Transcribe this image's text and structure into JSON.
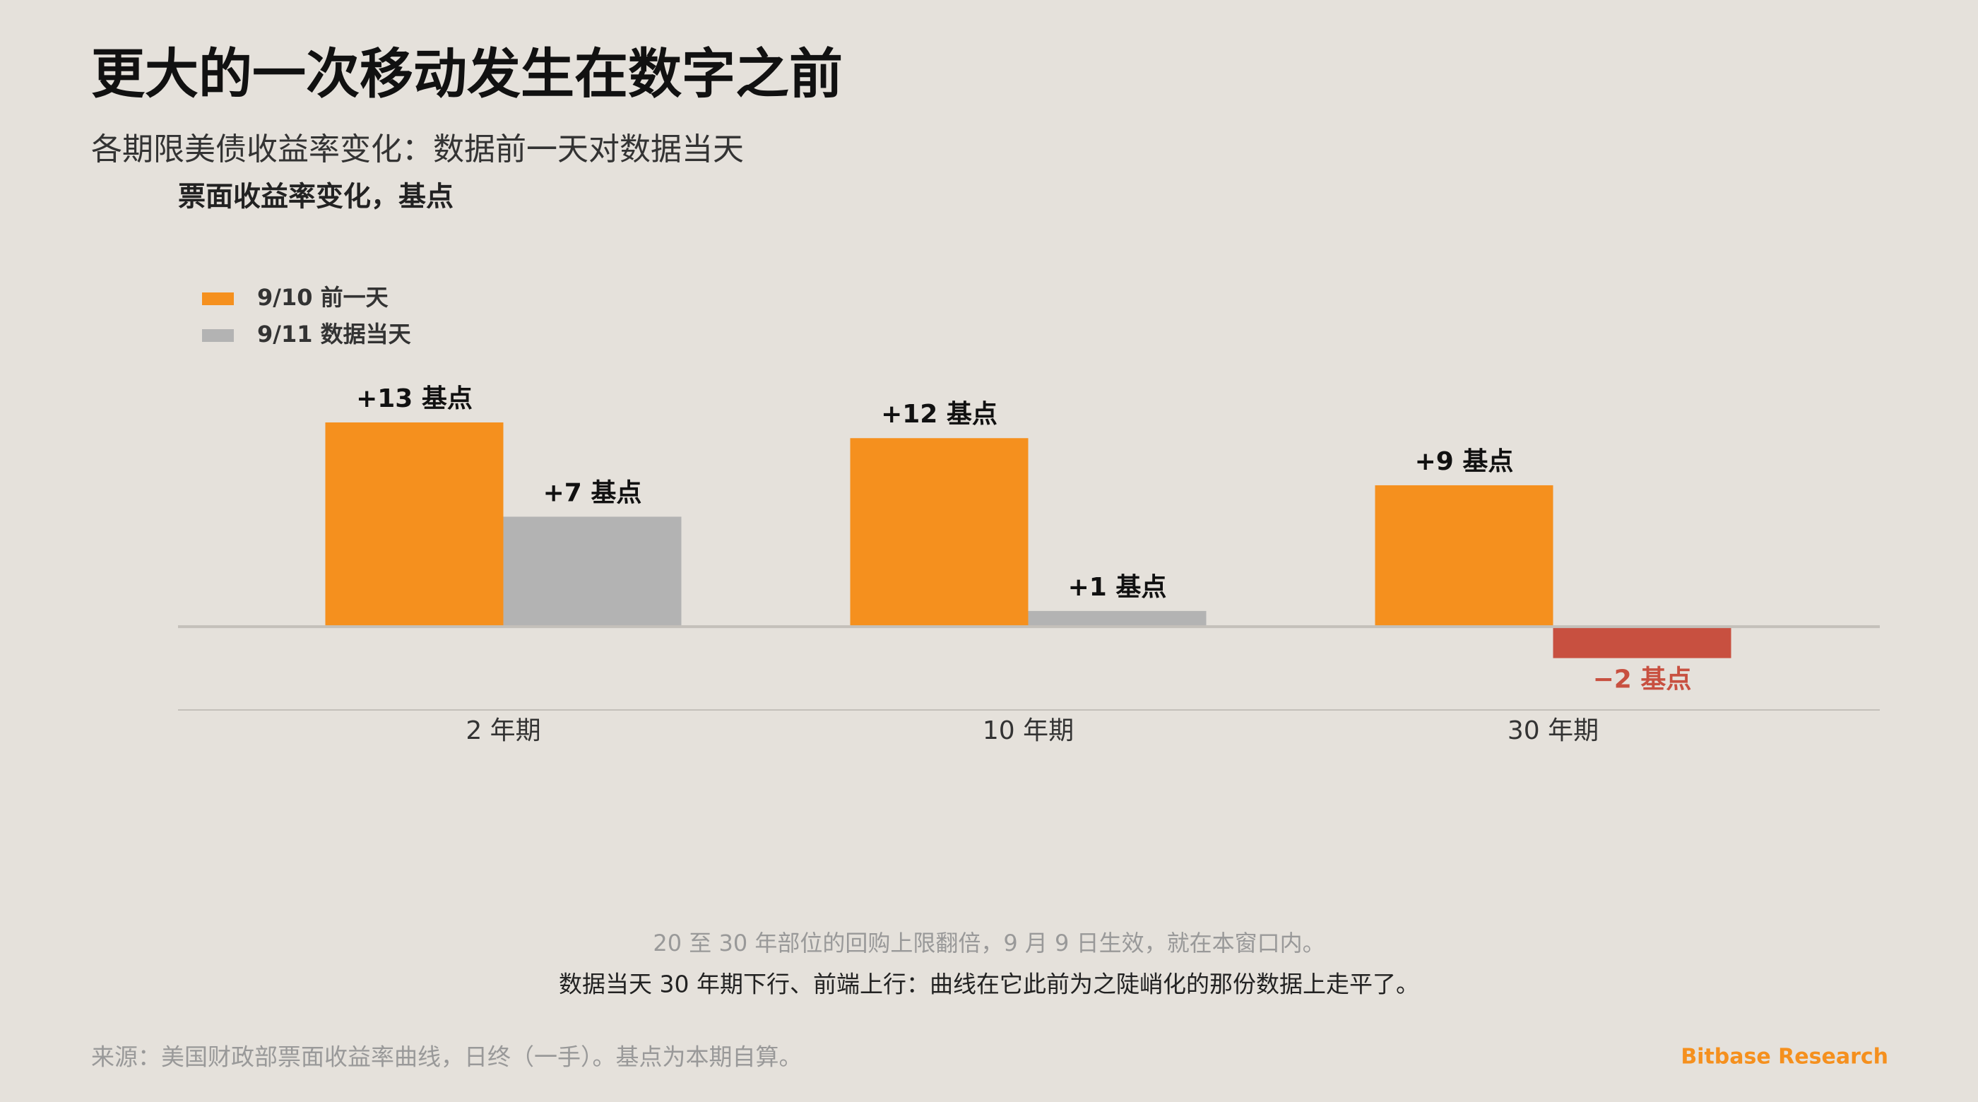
{
  "chart_data": {
    "type": "bar",
    "title": "更大的一次移动发生在数字之前",
    "subtitle": "各期限美债收益率变化：数据前一天对数据当天",
    "y_label": "票面收益率变化，基点",
    "categories": [
      "2 年期",
      "10 年期",
      "30 年期"
    ],
    "series": [
      {
        "name": "9/10 前一天",
        "color": "#f5901e",
        "values": [
          13,
          12,
          9
        ],
        "value_labels": [
          "+13 基点",
          "+12 基点",
          "+9 基点"
        ]
      },
      {
        "name": "9/11 数据当天",
        "color": "#b3b3b3",
        "colors": [
          "#b3b3b3",
          "#b3b3b3",
          "#c85040"
        ],
        "values": [
          7,
          1,
          -2
        ],
        "value_labels": [
          "+7 基点",
          "+1 基点",
          "−2 基点"
        ]
      }
    ],
    "ylim": [
      -5.3,
      13
    ],
    "legend": "top-left"
  },
  "footer": {
    "notes": [
      "20 至 30 年部位的回购上限翻倍，9 月 9 日生效，就在本窗口内。",
      "数据当天 30 年期下行、前端上行：曲线在它此前为之陡峭化的那份数据上走平了。"
    ],
    "source": "来源：美国财政部票面收益率曲线，日终（一手）。基点为本期自算。",
    "brand": "Bitbase Research"
  }
}
